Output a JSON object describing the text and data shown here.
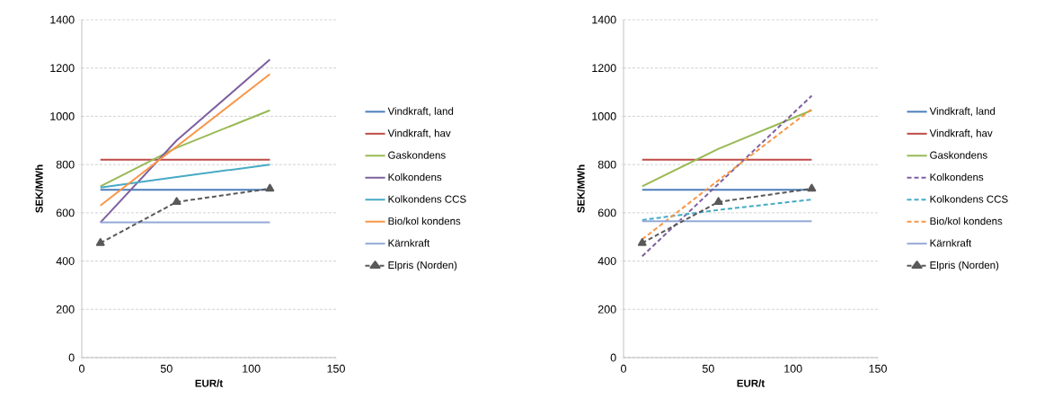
{
  "chart_data": [
    {
      "type": "line",
      "xlabel": "EUR/t",
      "ylabel": "SEK/MWh",
      "x": [
        11,
        56,
        111
      ],
      "xlim": [
        0,
        150
      ],
      "xticks": [
        0,
        50,
        100,
        150
      ],
      "ylim": [
        0,
        1400
      ],
      "yticks": [
        0,
        200,
        400,
        600,
        800,
        1000,
        1200,
        1400
      ],
      "grid": "y",
      "legend": "right",
      "marker": "none",
      "line_style": "solid",
      "series": [
        {
          "name": "Vindkraft, land",
          "color": "#4a7ebb",
          "values": [
            695,
            695,
            695
          ]
        },
        {
          "name": "Vindkraft, hav",
          "color": "#be4b48",
          "values": [
            820,
            820,
            820
          ]
        },
        {
          "name": "Gaskondens",
          "color": "#98b954",
          "values": [
            710,
            870,
            1025
          ]
        },
        {
          "name": "Kolkondens",
          "color": "#7d60a0",
          "values": [
            560,
            900,
            1235
          ]
        },
        {
          "name": "Kolkondens CCS",
          "color": "#46aac5",
          "values": [
            705,
            748,
            800
          ]
        },
        {
          "name": "Bio/kol kondens",
          "color": "#f79646",
          "values": [
            630,
            875,
            1175
          ]
        },
        {
          "name": "Kärnkraft",
          "color": "#93a9d8",
          "values": [
            560,
            560,
            560
          ]
        },
        {
          "name": "Elpris (Norden)",
          "color": "#595959",
          "values": [
            475,
            645,
            700
          ],
          "marker": "triangle",
          "line_style": "dashed"
        }
      ]
    },
    {
      "type": "line",
      "xlabel": "EUR/t",
      "ylabel": "SEK/MWh",
      "x": [
        11,
        56,
        111
      ],
      "xlim": [
        0,
        150
      ],
      "xticks": [
        0,
        50,
        100,
        150
      ],
      "ylim": [
        0,
        1400
      ],
      "yticks": [
        0,
        200,
        400,
        600,
        800,
        1000,
        1200,
        1400
      ],
      "grid": "y",
      "legend": "right",
      "marker": "none",
      "line_style": "solid",
      "series": [
        {
          "name": "Vindkraft, land",
          "color": "#4a7ebb",
          "values": [
            695,
            695,
            695
          ]
        },
        {
          "name": "Vindkraft, hav",
          "color": "#be4b48",
          "values": [
            820,
            820,
            820
          ]
        },
        {
          "name": "Gaskondens",
          "color": "#98b954",
          "values": [
            710,
            865,
            1025
          ]
        },
        {
          "name": "Kolkondens",
          "color": "#7d60a0",
          "values": [
            420,
            720,
            1085
          ],
          "line_style": "dashed"
        },
        {
          "name": "Kolkondens CCS",
          "color": "#46aac5",
          "values": [
            570,
            612,
            655
          ],
          "line_style": "dashed"
        },
        {
          "name": "Bio/kol kondens",
          "color": "#f79646",
          "values": [
            490,
            735,
            1030
          ],
          "line_style": "dashed"
        },
        {
          "name": "Kärnkraft",
          "color": "#93a9d8",
          "values": [
            565,
            565,
            565
          ]
        },
        {
          "name": "Elpris (Norden)",
          "color": "#595959",
          "values": [
            475,
            645,
            700
          ],
          "marker": "triangle",
          "line_style": "dashed"
        }
      ]
    }
  ]
}
